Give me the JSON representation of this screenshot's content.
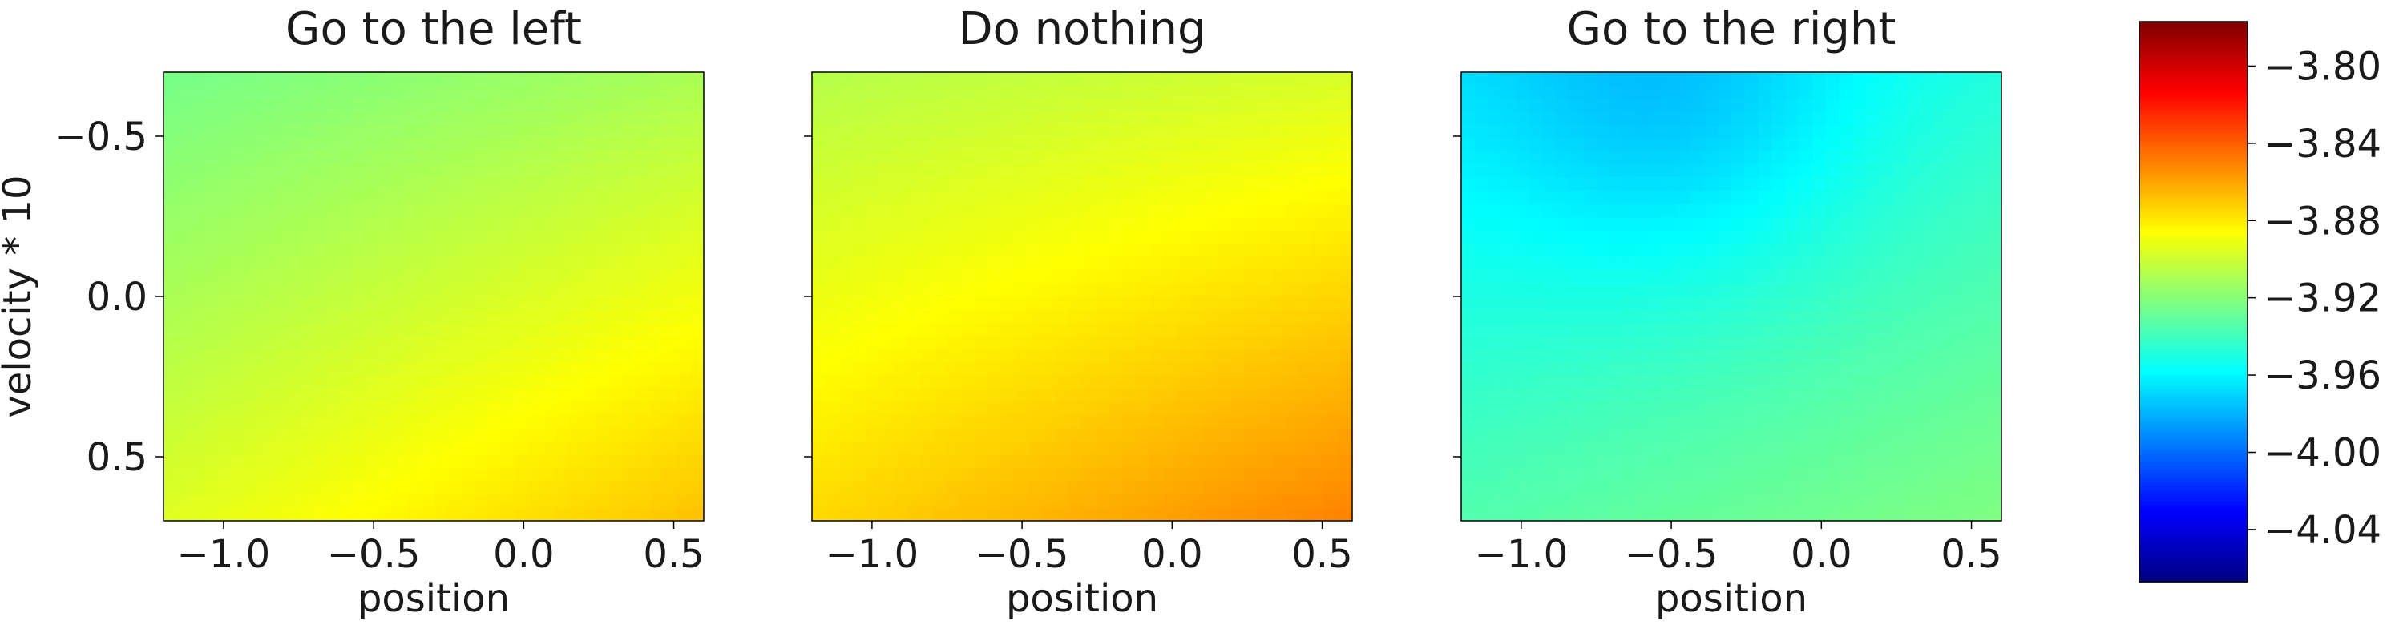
{
  "chart_data": {
    "type": "heatmap",
    "panels": [
      {
        "title": "Go to the left",
        "xlabel": "position",
        "ylabel": "velocity * 10",
        "xlim": [
          -1.2,
          0.6
        ],
        "ylim": [
          0.7,
          -0.7
        ],
        "xticks": [
          -1.0,
          -0.5,
          0.0,
          0.5
        ],
        "xtick_labels": [
          "−1.0",
          "−0.5",
          "0.0",
          "0.5"
        ],
        "yticks": [
          -0.5,
          0.0,
          0.5
        ],
        "ytick_labels": [
          "−0.5",
          "0.0",
          "0.5"
        ],
        "corner_values": {
          "top_left": -3.925,
          "top_right": -3.91,
          "bottom_left": -3.895,
          "bottom_right": -3.868
        },
        "range": [
          -3.93,
          -3.865
        ]
      },
      {
        "title": "Do nothing",
        "xlabel": "position",
        "xlim": [
          -1.2,
          0.6
        ],
        "ylim": [
          0.7,
          -0.7
        ],
        "xticks": [
          -1.0,
          -0.5,
          0.0,
          0.5
        ],
        "xtick_labels": [
          "−1.0",
          "−0.5",
          "0.0",
          "0.5"
        ],
        "yticks": [
          -0.5,
          0.0,
          0.5
        ],
        "corner_values": {
          "top_left": -3.907,
          "top_right": -3.897,
          "bottom_left": -3.875,
          "bottom_right": -3.85
        },
        "range": [
          -3.91,
          -3.848
        ]
      },
      {
        "title": "Go to the right",
        "xlabel": "position",
        "xlim": [
          -1.2,
          0.6
        ],
        "ylim": [
          0.7,
          -0.7
        ],
        "xticks": [
          -1.0,
          -0.5,
          0.0,
          0.5
        ],
        "xtick_labels": [
          "−1.0",
          "−0.5",
          "0.0",
          "0.5"
        ],
        "yticks": [
          -0.5,
          0.0,
          0.5
        ],
        "corner_values": {
          "top_left": -3.962,
          "top_right": -3.948,
          "bottom_left": -3.935,
          "bottom_right": -3.922
        },
        "min_value_location": {
          "position": -0.5,
          "velocity_x10": -0.6,
          "value": -3.975
        },
        "range": [
          -3.976,
          -3.92
        ]
      }
    ],
    "colorbar": {
      "colormap": "jet",
      "vmin": -4.067,
      "vmax": -3.777,
      "ticks": [
        -3.8,
        -3.84,
        -3.88,
        -3.92,
        -3.96,
        -4.0,
        -4.04
      ],
      "tick_labels": [
        "−3.80",
        "−3.84",
        "−3.88",
        "−3.92",
        "−3.96",
        "−4.00",
        "−4.04"
      ]
    },
    "grid": false,
    "legend": "none"
  }
}
